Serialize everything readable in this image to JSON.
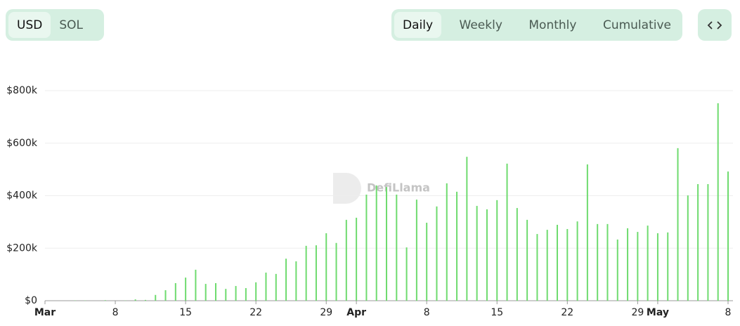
{
  "currency_toggle": {
    "options": [
      "USD",
      "SOL"
    ],
    "active_index": 0
  },
  "period_toggle": {
    "options": [
      "Daily",
      "Weekly",
      "Monthly",
      "Cumulative"
    ],
    "active_index": 0
  },
  "watermark": "DefiLlama",
  "chart_data": {
    "type": "bar",
    "color": "#6fdb6f",
    "grid": true,
    "categories": [
      "Mar",
      null,
      null,
      null,
      null,
      null,
      null,
      "8",
      null,
      null,
      null,
      null,
      null,
      null,
      "15",
      null,
      null,
      null,
      null,
      null,
      null,
      "22",
      null,
      null,
      null,
      null,
      null,
      null,
      "29",
      null,
      null,
      "Apr",
      null,
      null,
      null,
      null,
      null,
      null,
      "8",
      null,
      null,
      null,
      null,
      null,
      null,
      "15",
      null,
      null,
      null,
      null,
      null,
      null,
      "22",
      null,
      null,
      null,
      null,
      null,
      null,
      "29",
      null,
      "May",
      null,
      null,
      null,
      null,
      null,
      null,
      "8"
    ],
    "values": [
      0,
      0,
      0,
      1000,
      1000,
      0,
      2000,
      0,
      1000,
      5000,
      3000,
      22000,
      40000,
      67000,
      88000,
      118000,
      64000,
      67000,
      45000,
      56000,
      48000,
      70000,
      107000,
      102000,
      160000,
      150000,
      209000,
      211000,
      257000,
      220000,
      308000,
      316000,
      404000,
      439000,
      433000,
      404000,
      203000,
      385000,
      297000,
      359000,
      447000,
      415000,
      548000,
      361000,
      348000,
      383000,
      522000,
      353000,
      308000,
      254000,
      270000,
      289000,
      273000,
      302000,
      519000,
      292000,
      292000,
      233000,
      276000,
      262000,
      286000,
      257000,
      260000,
      581000,
      401000,
      444000,
      444000,
      752000,
      492000
    ],
    "ylim": [
      0,
      800000
    ],
    "yticks": [
      {
        "value": 0,
        "label": "$0"
      },
      {
        "value": 200000,
        "label": "$200k"
      },
      {
        "value": 400000,
        "label": "$400k"
      },
      {
        "value": 600000,
        "label": "$600k"
      },
      {
        "value": 800000,
        "label": "$800k"
      }
    ]
  }
}
